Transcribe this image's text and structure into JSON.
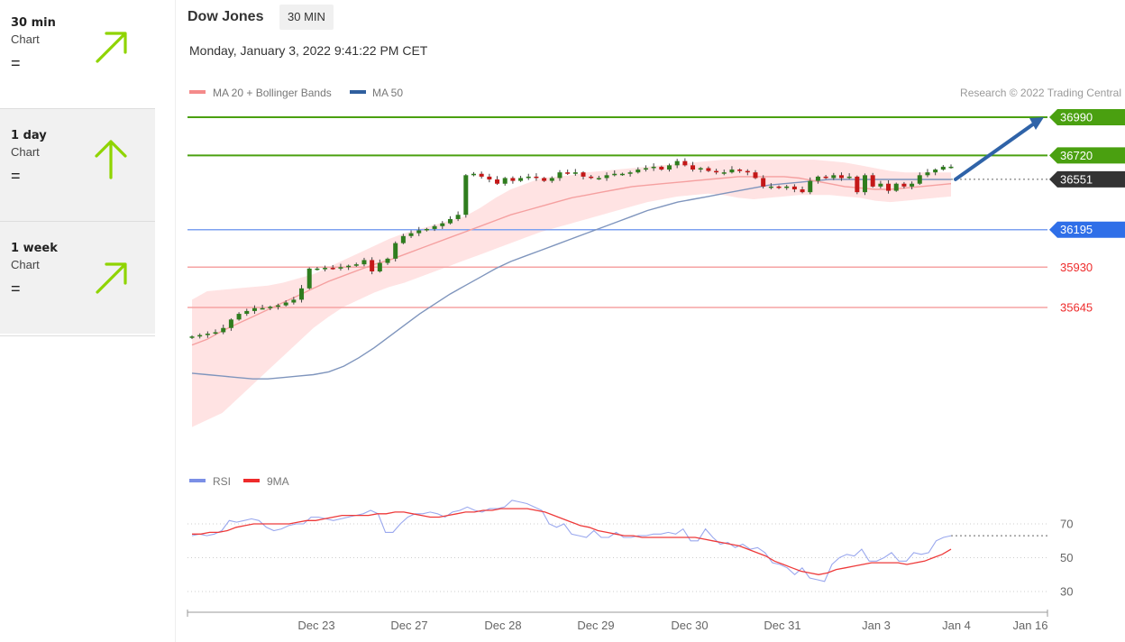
{
  "sidebar": {
    "cards": [
      {
        "period": "30 min",
        "sub": "Chart",
        "status": "=",
        "arrow": "up-right"
      },
      {
        "period": "1 day",
        "sub": "Chart",
        "status": "=",
        "arrow": "up"
      },
      {
        "period": "1 week",
        "sub": "Chart",
        "status": "=",
        "arrow": "up-right"
      }
    ],
    "arrow_color": "#8fd400"
  },
  "header": {
    "title": "Dow Jones",
    "interval": "30 MIN",
    "datetime": "Monday, January 3, 2022 9:41:22 PM CET"
  },
  "chart_data": {
    "type": "candlestick",
    "legend": [
      {
        "name": "MA 20 + Bollinger Bands",
        "color": "#f48a8a"
      },
      {
        "name": "MA 50",
        "color": "#2f5f9e"
      }
    ],
    "credit": "Research © 2022 Trading Central",
    "x_labels": [
      "Dec 23",
      "Dec 27",
      "Dec 28",
      "Dec 29",
      "Dec 30",
      "Dec 31",
      "Jan 3",
      "Jan 4",
      "Jan 16"
    ],
    "levels": [
      {
        "value": 36990,
        "label": "36990",
        "kind": "resistance",
        "color": "#4aa010"
      },
      {
        "value": 36720,
        "label": "36720",
        "kind": "resistance",
        "color": "#4aa010"
      },
      {
        "value": 36551,
        "label": "36551",
        "kind": "last",
        "color": "#333333"
      },
      {
        "value": 36195,
        "label": "36195",
        "kind": "support",
        "color": "#2f6fe8"
      },
      {
        "value": 35930,
        "label": "35930",
        "kind": "support",
        "color": "#ee2b2b"
      },
      {
        "value": 35645,
        "label": "35645",
        "kind": "support",
        "color": "#ee2b2b"
      }
    ],
    "y_range": [
      34660,
      37060
    ],
    "target": {
      "from": 36551,
      "to": 36990
    },
    "candles_close": [
      35440,
      35450,
      35460,
      35470,
      35500,
      35560,
      35600,
      35620,
      35640,
      35640,
      35650,
      35660,
      35680,
      35700,
      35780,
      35920,
      35920,
      35925,
      35920,
      35930,
      35940,
      35950,
      35980,
      35900,
      35960,
      35990,
      36100,
      36150,
      36170,
      36190,
      36200,
      36220,
      36240,
      36270,
      36300,
      36580,
      36590,
      36570,
      36550,
      36520,
      36560,
      36540,
      36560,
      36570,
      36560,
      36540,
      36560,
      36600,
      36590,
      36600,
      36570,
      36560,
      36560,
      36580,
      36590,
      36590,
      36600,
      36620,
      36630,
      36640,
      36620,
      36650,
      36680,
      36650,
      36620,
      36630,
      36610,
      36600,
      36600,
      36620,
      36610,
      36600,
      36560,
      36500,
      36500,
      36490,
      36500,
      36480,
      36460,
      36540,
      36570,
      36560,
      36580,
      36560,
      36570,
      36460,
      36580,
      36500,
      36520,
      36470,
      36520,
      36500,
      36520,
      36580,
      36600,
      36620,
      36640,
      36640
    ],
    "ma20": [
      35380,
      35420,
      35480,
      35530,
      35580,
      35630,
      35680,
      35730,
      35780,
      35830,
      35870,
      35910,
      35950,
      35980,
      36020,
      36060,
      36100,
      36140,
      36180,
      36220,
      36260,
      36300,
      36330,
      36360,
      36390,
      36420,
      36440,
      36460,
      36480,
      36500,
      36510,
      36520,
      36530,
      36540,
      36550,
      36560,
      36570,
      36570,
      36570,
      36570,
      36560,
      36540,
      36520,
      36500,
      36490,
      36480,
      36480,
      36490,
      36500,
      36510,
      36520
    ],
    "ma50": [
      35180,
      35170,
      35160,
      35150,
      35140,
      35140,
      35150,
      35160,
      35170,
      35190,
      35230,
      35290,
      35360,
      35440,
      35520,
      35600,
      35670,
      35740,
      35800,
      35860,
      35920,
      35970,
      36010,
      36050,
      36090,
      36130,
      36170,
      36210,
      36250,
      36290,
      36330,
      36360,
      36390,
      36410,
      36430,
      36450,
      36470,
      36490,
      36510,
      36520,
      36530,
      36540,
      36550,
      36550,
      36550,
      36550,
      36550,
      36550,
      36550,
      36550,
      36550
    ],
    "bb_upper": [
      35700,
      35760,
      35770,
      35780,
      35790,
      35800,
      35820,
      35850,
      35880,
      35930,
      35980,
      36030,
      36080,
      36130,
      36170,
      36200,
      36230,
      36260,
      36290,
      36350,
      36420,
      36480,
      36520,
      36560,
      36570,
      36580,
      36600,
      36610,
      36620,
      36630,
      36640,
      36650,
      36660,
      36670,
      36680,
      36690,
      36690,
      36690,
      36690,
      36690,
      36690,
      36690,
      36680,
      36670,
      36650,
      36630,
      36610,
      36600,
      36600,
      36600,
      36600
    ],
    "bb_lower": [
      34800,
      34850,
      34900,
      35000,
      35100,
      35200,
      35300,
      35400,
      35500,
      35580,
      35650,
      35700,
      35750,
      35790,
      35820,
      35860,
      35900,
      35940,
      35980,
      36020,
      36060,
      36100,
      36140,
      36180,
      36210,
      36240,
      36270,
      36300,
      36330,
      36360,
      36390,
      36410,
      36430,
      36440,
      36450,
      36440,
      36420,
      36410,
      36420,
      36430,
      36440,
      36440,
      36440,
      36430,
      36420,
      36400,
      36390,
      36400,
      36410,
      36420,
      36430
    ],
    "rsi_panel": {
      "legend": [
        {
          "name": "RSI",
          "color": "#7b8fe6"
        },
        {
          "name": "9MA",
          "color": "#ee2b2b"
        }
      ],
      "y_ticks": [
        "70",
        "50",
        "30"
      ],
      "y_range": [
        20,
        90
      ],
      "last_rsi": 63,
      "rsi": [
        63,
        64,
        63,
        64,
        66,
        72,
        71,
        72,
        73,
        72,
        68,
        66,
        67,
        69,
        70,
        70,
        74,
        74,
        73,
        72,
        73,
        74,
        75,
        76,
        78,
        76,
        65,
        65,
        70,
        74,
        76,
        76,
        77,
        76,
        74,
        77,
        78,
        80,
        78,
        77,
        79,
        79,
        80,
        84,
        83,
        82,
        80,
        78,
        70,
        68,
        70,
        64,
        63,
        62,
        66,
        62,
        62,
        65,
        62,
        62,
        63,
        63,
        64,
        64,
        65,
        64,
        67,
        60,
        60,
        67,
        62,
        58,
        59,
        56,
        58,
        55,
        56,
        53,
        47,
        46,
        44,
        40,
        44,
        38,
        37,
        36,
        46,
        50,
        52,
        51,
        55,
        48,
        48,
        50,
        53,
        48,
        48,
        53,
        52,
        53,
        60,
        62,
        63
      ],
      "ma9": [
        64,
        64,
        65,
        65,
        66,
        68,
        69,
        70,
        70,
        70,
        70,
        70,
        71,
        72,
        72,
        73,
        74,
        75,
        75,
        75,
        75,
        76,
        76,
        77,
        77,
        76,
        75,
        74,
        74,
        75,
        76,
        77,
        77,
        78,
        78,
        79,
        79,
        79,
        79,
        78,
        77,
        75,
        73,
        71,
        69,
        68,
        66,
        65,
        64,
        63,
        63,
        62,
        62,
        62,
        62,
        62,
        62,
        62,
        61,
        60,
        59,
        58,
        57,
        55,
        53,
        51,
        48,
        46,
        44,
        42,
        41,
        40,
        41,
        43,
        44,
        45,
        46,
        47,
        47,
        47,
        47,
        46,
        47,
        48,
        50,
        52,
        55
      ]
    }
  }
}
